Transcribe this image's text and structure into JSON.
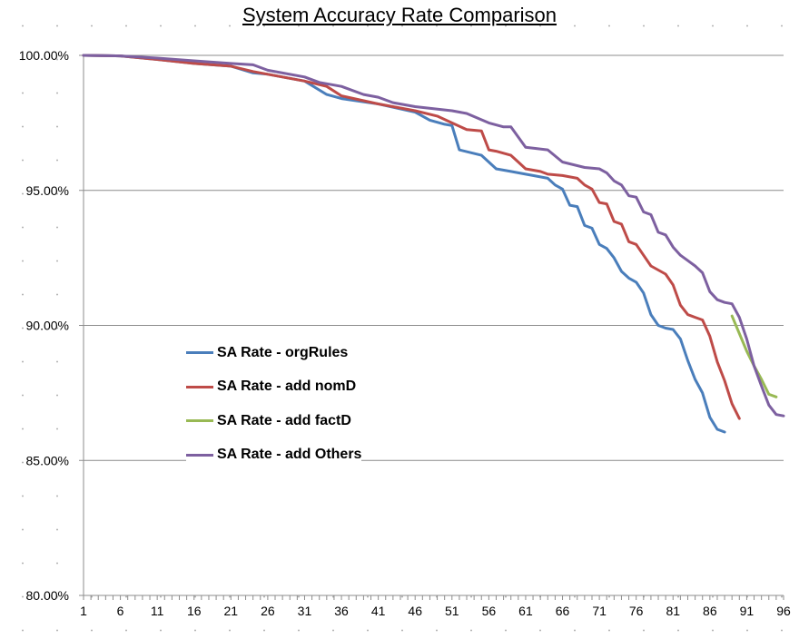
{
  "chart_data": {
    "type": "line",
    "title": "System Accuracy Rate Comparison",
    "xlabel": "",
    "ylabel": "",
    "xlim": [
      1,
      96
    ],
    "ylim": [
      80,
      100
    ],
    "x_ticks": [
      1,
      6,
      11,
      16,
      21,
      26,
      31,
      36,
      41,
      46,
      51,
      56,
      61,
      66,
      71,
      76,
      81,
      86,
      91,
      96
    ],
    "y_ticks": [
      {
        "value": 80,
        "label": "80.00%"
      },
      {
        "value": 85,
        "label": "85.00%"
      },
      {
        "value": 90,
        "label": "90.00%"
      },
      {
        "value": 95,
        "label": "95.00%"
      },
      {
        "value": 100,
        "label": "100.00%"
      }
    ],
    "grid": "horizontal",
    "legend_position": "inside-lower-left",
    "series": [
      {
        "name": "SA Rate - orgRules",
        "color": "#4a7ebb",
        "x": [
          1,
          6,
          11,
          16,
          21,
          24,
          26,
          31,
          34,
          36,
          41,
          46,
          48,
          50,
          51,
          52,
          55,
          57,
          59,
          61,
          62,
          64,
          65,
          66,
          67,
          68,
          69,
          70,
          71,
          72,
          73,
          74,
          75,
          76,
          77,
          78,
          79,
          80,
          81,
          82,
          83,
          84,
          85,
          86,
          87,
          88
        ],
        "y": [
          100,
          99.98,
          99.85,
          99.7,
          99.6,
          99.35,
          99.3,
          99.05,
          98.55,
          98.4,
          98.2,
          97.9,
          97.6,
          97.45,
          97.4,
          96.5,
          96.3,
          95.8,
          95.7,
          95.6,
          95.55,
          95.45,
          95.2,
          95.05,
          94.45,
          94.4,
          93.7,
          93.6,
          93.0,
          92.85,
          92.5,
          92.0,
          91.75,
          91.6,
          91.2,
          90.4,
          90.0,
          89.9,
          89.85,
          89.5,
          88.7,
          88.0,
          87.5,
          86.6,
          86.15,
          86.05
        ]
      },
      {
        "name": "SA Rate - add nomD",
        "color": "#be4b48",
        "x": [
          1,
          6,
          11,
          16,
          21,
          24,
          26,
          31,
          34,
          36,
          41,
          46,
          49,
          51,
          53,
          55,
          56,
          57,
          59,
          60,
          61,
          63,
          64,
          66,
          68,
          69,
          70,
          71,
          72,
          73,
          74,
          75,
          76,
          77,
          78,
          79,
          80,
          81,
          82,
          83,
          84,
          85,
          86,
          87,
          88,
          89,
          90
        ],
        "y": [
          100,
          99.98,
          99.85,
          99.7,
          99.6,
          99.4,
          99.3,
          99.05,
          98.85,
          98.5,
          98.2,
          97.95,
          97.75,
          97.5,
          97.25,
          97.2,
          96.5,
          96.45,
          96.3,
          96.05,
          95.8,
          95.7,
          95.6,
          95.55,
          95.45,
          95.2,
          95.05,
          94.55,
          94.5,
          93.85,
          93.75,
          93.1,
          93.0,
          92.6,
          92.2,
          92.05,
          91.9,
          91.5,
          90.75,
          90.4,
          90.3,
          90.2,
          89.6,
          88.65,
          87.95,
          87.1,
          86.55
        ]
      },
      {
        "name": "SA Rate - add factD",
        "color": "#98b954",
        "x": [
          89,
          90,
          91,
          92,
          93,
          94,
          95
        ],
        "y": [
          90.35,
          89.7,
          89.05,
          88.5,
          88.0,
          87.45,
          87.35
        ]
      },
      {
        "name": "SA Rate - add Others",
        "color": "#7d60a0",
        "x": [
          1,
          6,
          11,
          16,
          21,
          24,
          26,
          31,
          33,
          36,
          39,
          41,
          43,
          46,
          51,
          53,
          56,
          58,
          59,
          61,
          64,
          66,
          69,
          71,
          72,
          73,
          74,
          75,
          76,
          77,
          78,
          79,
          80,
          81,
          82,
          83,
          84,
          85,
          86,
          87,
          88,
          89,
          90,
          91,
          92,
          93,
          94,
          95,
          96
        ],
        "y": [
          100,
          99.98,
          99.9,
          99.8,
          99.7,
          99.65,
          99.45,
          99.2,
          99.0,
          98.85,
          98.55,
          98.45,
          98.25,
          98.1,
          97.95,
          97.85,
          97.5,
          97.35,
          97.35,
          96.6,
          96.5,
          96.05,
          95.85,
          95.8,
          95.65,
          95.35,
          95.2,
          94.8,
          94.75,
          94.2,
          94.1,
          93.45,
          93.35,
          92.9,
          92.6,
          92.4,
          92.2,
          91.95,
          91.25,
          90.95,
          90.85,
          90.8,
          90.3,
          89.5,
          88.5,
          87.75,
          87.05,
          86.7,
          86.65
        ]
      }
    ]
  }
}
